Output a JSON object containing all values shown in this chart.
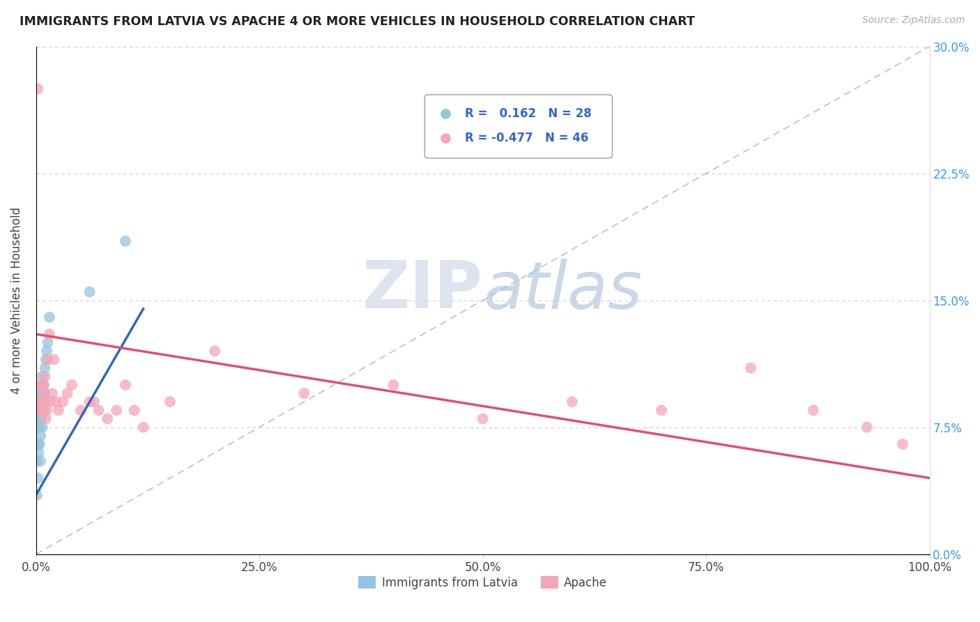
{
  "title": "IMMIGRANTS FROM LATVIA VS APACHE 4 OR MORE VEHICLES IN HOUSEHOLD CORRELATION CHART",
  "source": "Source: ZipAtlas.com",
  "ylabel": "4 or more Vehicles in Household",
  "xlim": [
    0,
    1.0
  ],
  "ylim": [
    0,
    0.3
  ],
  "xticks": [
    0.0,
    0.25,
    0.5,
    0.75,
    1.0
  ],
  "xtick_labels": [
    "0.0%",
    "25.0%",
    "50.0%",
    "75.0%",
    "100.0%"
  ],
  "yticks": [
    0.0,
    0.075,
    0.15,
    0.225,
    0.3
  ],
  "ytick_labels": [
    "0.0%",
    "7.5%",
    "15.0%",
    "22.5%",
    "30.0%"
  ],
  "legend_R_blue": "0.162",
  "legend_N_blue": "28",
  "legend_R_pink": "-0.477",
  "legend_N_pink": "46",
  "blue_color": "#94c4e0",
  "pink_color": "#f4a6b8",
  "blue_line_color": "#3366bb",
  "pink_line_color": "#e05070",
  "diag_color": "#b0b8d8",
  "watermark_color": "#dde4f0",
  "blue_scatter_x": [
    0.001,
    0.001,
    0.002,
    0.002,
    0.003,
    0.003,
    0.004,
    0.004,
    0.005,
    0.005,
    0.005,
    0.006,
    0.006,
    0.007,
    0.007,
    0.007,
    0.008,
    0.008,
    0.009,
    0.009,
    0.01,
    0.01,
    0.011,
    0.012,
    0.013,
    0.015,
    0.06,
    0.1
  ],
  "blue_scatter_y": [
    0.035,
    0.055,
    0.045,
    0.065,
    0.06,
    0.075,
    0.065,
    0.08,
    0.07,
    0.09,
    0.055,
    0.08,
    0.095,
    0.075,
    0.09,
    0.105,
    0.085,
    0.095,
    0.09,
    0.1,
    0.095,
    0.11,
    0.115,
    0.12,
    0.125,
    0.14,
    0.155,
    0.185
  ],
  "pink_scatter_x": [
    0.002,
    0.003,
    0.004,
    0.005,
    0.005,
    0.006,
    0.007,
    0.007,
    0.008,
    0.008,
    0.009,
    0.009,
    0.01,
    0.01,
    0.011,
    0.012,
    0.013,
    0.015,
    0.016,
    0.018,
    0.02,
    0.022,
    0.025,
    0.03,
    0.035,
    0.04,
    0.05,
    0.06,
    0.065,
    0.07,
    0.08,
    0.09,
    0.1,
    0.11,
    0.12,
    0.15,
    0.2,
    0.3,
    0.4,
    0.5,
    0.6,
    0.7,
    0.8,
    0.87,
    0.93,
    0.97
  ],
  "pink_scatter_y": [
    0.275,
    0.09,
    0.085,
    0.1,
    0.085,
    0.09,
    0.1,
    0.085,
    0.09,
    0.1,
    0.085,
    0.095,
    0.09,
    0.105,
    0.08,
    0.085,
    0.115,
    0.13,
    0.09,
    0.095,
    0.115,
    0.09,
    0.085,
    0.09,
    0.095,
    0.1,
    0.085,
    0.09,
    0.09,
    0.085,
    0.08,
    0.085,
    0.1,
    0.085,
    0.075,
    0.09,
    0.12,
    0.095,
    0.1,
    0.08,
    0.09,
    0.085,
    0.11,
    0.085,
    0.075,
    0.065
  ],
  "blue_trend_x": [
    0.0,
    0.12
  ],
  "blue_trend_y_start": 0.035,
  "blue_trend_y_end": 0.145,
  "pink_trend_x": [
    0.0,
    1.0
  ],
  "pink_trend_y_start": 0.13,
  "pink_trend_y_end": 0.045
}
